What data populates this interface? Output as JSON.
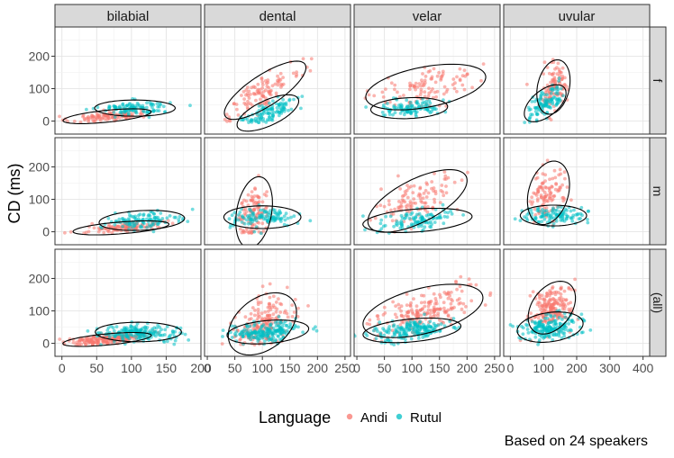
{
  "chart_data": {
    "type": "scatter",
    "ylabel": "CD (ms)",
    "caption": "Based on 24 speakers",
    "legend": {
      "title": "Language",
      "position": "bottom"
    },
    "series": [
      {
        "name": "Andi",
        "color": "#F8766D"
      },
      {
        "name": "Rutul",
        "color": "#00BFC4"
      }
    ],
    "facet_cols": [
      "bilabial",
      "dental",
      "velar",
      "uvular"
    ],
    "facet_rows": [
      "f",
      "m",
      "(all)"
    ],
    "ylim": [
      -40,
      290
    ],
    "y_ticks": [
      0,
      100,
      200
    ],
    "x_axes": [
      {
        "xlim": [
          -10,
          200
        ],
        "ticks": [
          0,
          50,
          100,
          150,
          200
        ]
      },
      {
        "xlim": [
          -5,
          260
        ],
        "ticks": [
          0,
          50,
          100,
          150,
          200,
          250
        ]
      },
      {
        "xlim": [
          -5,
          260
        ],
        "ticks": [
          0,
          50,
          100,
          150,
          200,
          250
        ]
      },
      {
        "xlim": [
          -20,
          420
        ],
        "ticks": [
          0,
          100,
          200,
          300,
          400
        ]
      }
    ],
    "panels": [
      {
        "row": "f",
        "col": "bilabial",
        "ellipses": [
          {
            "series": "Andi",
            "cx": 65,
            "cy": 15,
            "a": 65,
            "b": 18,
            "angle": 13
          },
          {
            "series": "Rutul",
            "cx": 105,
            "cy": 40,
            "a": 58,
            "b": 25,
            "angle": 0
          }
        ]
      },
      {
        "row": "f",
        "col": "dental",
        "ellipses": [
          {
            "series": "Andi",
            "cx": 105,
            "cy": 95,
            "a": 110,
            "b": 38,
            "angle": 52
          },
          {
            "series": "Rutul",
            "cx": 110,
            "cy": 25,
            "a": 72,
            "b": 33,
            "angle": 45
          }
        ]
      },
      {
        "row": "f",
        "col": "velar",
        "ellipses": [
          {
            "series": "Andi",
            "cx": 125,
            "cy": 105,
            "a": 115,
            "b": 60,
            "angle": 22
          },
          {
            "series": "Rutul",
            "cx": 95,
            "cy": 40,
            "a": 70,
            "b": 32,
            "angle": 5
          }
        ]
      },
      {
        "row": "f",
        "col": "uvular",
        "ellipses": [
          {
            "series": "Andi",
            "cx": 130,
            "cy": 105,
            "a": 85,
            "b": 48,
            "angle": 78
          },
          {
            "series": "Rutul",
            "cx": 105,
            "cy": 55,
            "a": 75,
            "b": 40,
            "angle": 40
          }
        ]
      },
      {
        "row": "m",
        "col": "bilabial",
        "ellipses": [
          {
            "series": "Andi",
            "cx": 85,
            "cy": 12,
            "a": 70,
            "b": 18,
            "angle": 10
          },
          {
            "series": "Rutul",
            "cx": 115,
            "cy": 35,
            "a": 62,
            "b": 30,
            "angle": 8
          }
        ]
      },
      {
        "row": "m",
        "col": "dental",
        "ellipses": [
          {
            "series": "Andi",
            "cx": 85,
            "cy": 60,
            "a": 110,
            "b": 32,
            "angle": 85
          },
          {
            "series": "Rutul",
            "cx": 100,
            "cy": 45,
            "a": 70,
            "b": 35,
            "angle": 0
          }
        ]
      },
      {
        "row": "m",
        "col": "velar",
        "ellipses": [
          {
            "series": "Andi",
            "cx": 110,
            "cy": 95,
            "a": 120,
            "b": 55,
            "angle": 48
          },
          {
            "series": "Rutul",
            "cx": 110,
            "cy": 35,
            "a": 100,
            "b": 35,
            "angle": 8
          }
        ]
      },
      {
        "row": "m",
        "col": "uvular",
        "ellipses": [
          {
            "series": "Andi",
            "cx": 115,
            "cy": 120,
            "a": 100,
            "b": 60,
            "angle": 75
          },
          {
            "series": "Rutul",
            "cx": 130,
            "cy": 50,
            "a": 100,
            "b": 32,
            "angle": 0
          }
        ]
      },
      {
        "row": "(all)",
        "col": "bilabial",
        "ellipses": [
          {
            "series": "Andi",
            "cx": 65,
            "cy": 12,
            "a": 65,
            "b": 17,
            "angle": 12
          },
          {
            "series": "Rutul",
            "cx": 110,
            "cy": 35,
            "a": 62,
            "b": 30,
            "angle": 0
          }
        ]
      },
      {
        "row": "(all)",
        "col": "dental",
        "ellipses": [
          {
            "series": "Andi",
            "cx": 100,
            "cy": 60,
            "a": 100,
            "b": 55,
            "angle": 70
          },
          {
            "series": "Rutul",
            "cx": 110,
            "cy": 35,
            "a": 75,
            "b": 35,
            "angle": 10
          }
        ]
      },
      {
        "row": "(all)",
        "col": "velar",
        "ellipses": [
          {
            "series": "Andi",
            "cx": 120,
            "cy": 100,
            "a": 120,
            "b": 65,
            "angle": 30
          },
          {
            "series": "Rutul",
            "cx": 100,
            "cy": 40,
            "a": 90,
            "b": 35,
            "angle": 10
          }
        ]
      },
      {
        "row": "(all)",
        "col": "uvular",
        "ellipses": [
          {
            "series": "Andi",
            "cx": 125,
            "cy": 110,
            "a": 90,
            "b": 60,
            "angle": 55
          },
          {
            "series": "Rutul",
            "cx": 120,
            "cy": 50,
            "a": 100,
            "b": 45,
            "angle": 8
          }
        ]
      }
    ]
  }
}
